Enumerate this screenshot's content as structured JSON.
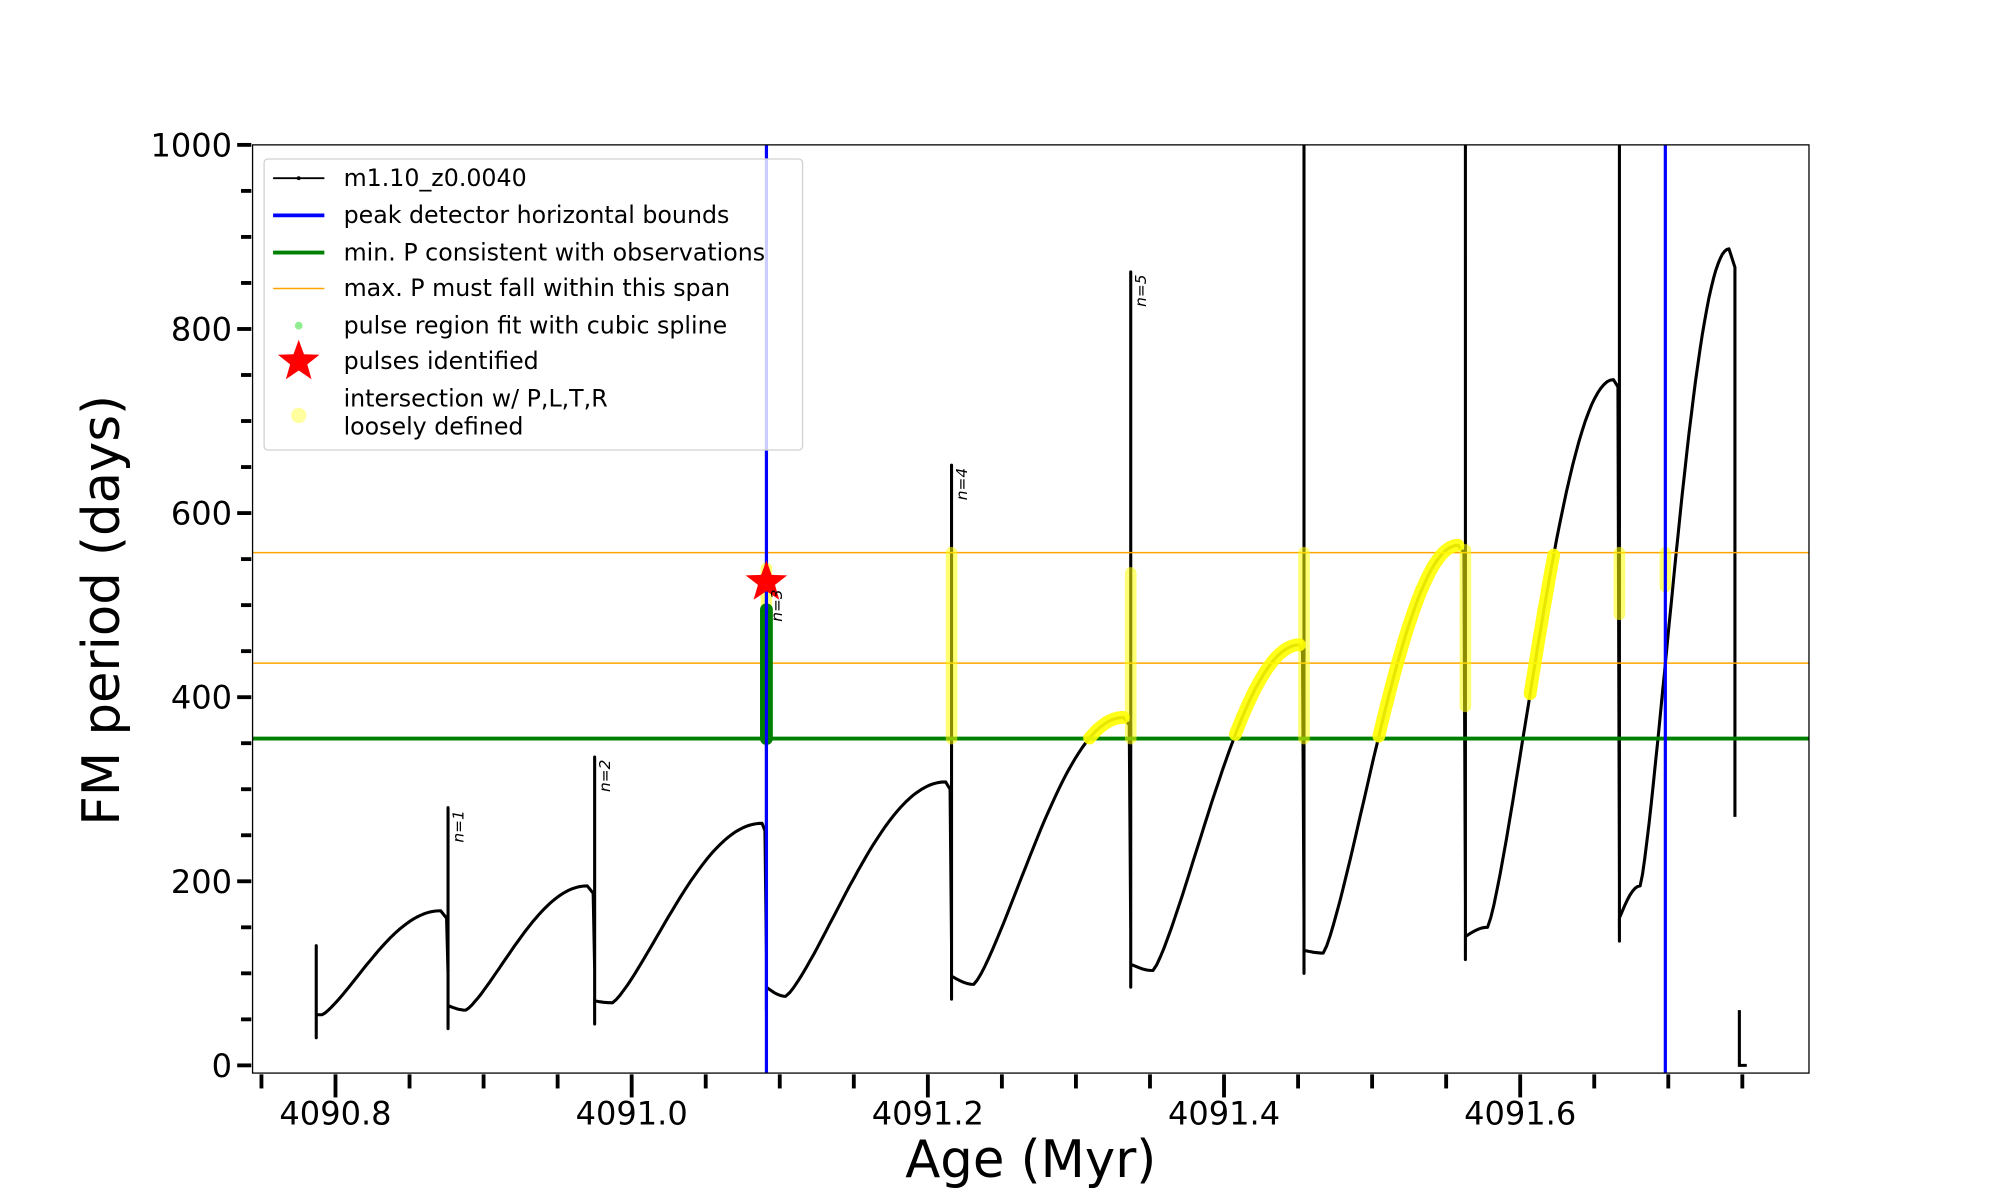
{
  "chart_data": {
    "type": "line",
    "title": "",
    "xlabel": "Age (Myr)",
    "ylabel": "FM period (days)",
    "xlim": [
      4090.744,
      4091.795
    ],
    "ylim": [
      0,
      1000
    ],
    "xticks": [
      "4090.8",
      "4091.0",
      "4091.2",
      "4091.4",
      "4091.6"
    ],
    "xtick_values": [
      4090.8,
      4091.0,
      4091.2,
      4091.4,
      4091.6
    ],
    "yticks": [
      "0",
      "200",
      "400",
      "600",
      "800",
      "1000"
    ],
    "ytick_values": [
      0,
      200,
      400,
      600,
      800,
      1000
    ],
    "grid": false,
    "legend_placement": "upper-left",
    "legend": [
      {
        "label": "m1.10_z0.0040",
        "kind": "line-marker",
        "color": "#000000"
      },
      {
        "label": "peak detector horizontal bounds",
        "kind": "line",
        "color": "#0000ff"
      },
      {
        "label": "min. P consistent with observations",
        "kind": "line",
        "color": "#008000"
      },
      {
        "label": "max. P must fall within this span",
        "kind": "thin-line",
        "color": "#ffa500"
      },
      {
        "label": "pulse region fit with cubic spline",
        "kind": "dot",
        "color": "#90ee90"
      },
      {
        "label": "pulses identified",
        "kind": "star",
        "color": "#ff0000"
      },
      {
        "label": "intersection w/ P,L,T,R",
        "label2": "loosely defined",
        "kind": "dot",
        "color": "#ffffa0"
      }
    ],
    "series_name": "m1.10_z0.0040",
    "spikes": [
      {
        "age": 4090.787,
        "top": 130,
        "bottom": 30,
        "label": ""
      },
      {
        "age": 4090.876,
        "top": 280,
        "bottom": 40,
        "label": "n=1"
      },
      {
        "age": 4090.975,
        "top": 335,
        "bottom": 45,
        "label": "n=2"
      },
      {
        "age": 4091.091,
        "top": 520,
        "bottom": 60,
        "label": "n=3"
      },
      {
        "age": 4091.216,
        "top": 652,
        "bottom": 72,
        "label": "n=4"
      },
      {
        "age": 4091.337,
        "top": 862,
        "bottom": 85,
        "label": "n=5"
      },
      {
        "age": 4091.454,
        "top": 1000,
        "bottom": 100,
        "label": ""
      },
      {
        "age": 4091.563,
        "top": 1000,
        "bottom": 115,
        "label": ""
      },
      {
        "age": 4091.667,
        "top": 1000,
        "bottom": 135,
        "label": ""
      }
    ],
    "cycles": [
      {
        "min_age": 4090.791,
        "min_p": 55,
        "peak_age": 4090.871,
        "peak_p": 168
      },
      {
        "min_age": 4090.888,
        "min_p": 60,
        "peak_age": 4090.97,
        "peak_p": 195
      },
      {
        "min_age": 4090.987,
        "min_p": 68,
        "peak_age": 4091.088,
        "peak_p": 263
      },
      {
        "min_age": 4091.104,
        "min_p": 75,
        "peak_age": 4091.212,
        "peak_p": 308
      },
      {
        "min_age": 4091.231,
        "min_p": 88,
        "peak_age": 4091.332,
        "peak_p": 378
      },
      {
        "min_age": 4091.352,
        "min_p": 103,
        "peak_age": 4091.451,
        "peak_p": 457
      },
      {
        "min_age": 4091.467,
        "min_p": 122,
        "peak_age": 4091.558,
        "peak_p": 565
      },
      {
        "min_age": 4091.578,
        "min_p": 150,
        "peak_age": 4091.663,
        "peak_p": 745
      },
      {
        "min_age": 4091.681,
        "min_p": 195,
        "peak_age": 4091.741,
        "peak_p": 887
      }
    ],
    "final_drop": {
      "age": 4091.745,
      "from": 887,
      "to": 270,
      "tail_start": 4091.748,
      "tail_end": 4091.753,
      "tail_p": 0
    },
    "blue_bounds": [
      4091.091,
      4091.698
    ],
    "green_min_p": 355,
    "orange_span": [
      437,
      557
    ],
    "yellow_rises": [
      {
        "cycle": 4,
        "p_low": 355,
        "p_high": 378
      },
      {
        "cycle": 5,
        "p_low": 355,
        "p_high": 457
      },
      {
        "cycle": 6,
        "p_low": 355,
        "p_high": 565
      },
      {
        "cycle": 7,
        "p_low": 397,
        "p_high": 557
      }
    ],
    "yellow_spikes": [
      {
        "age": 4091.091,
        "p_low": 495,
        "p_high": 540
      },
      {
        "age": 4091.216,
        "p_low": 355,
        "p_high": 557
      },
      {
        "age": 4091.337,
        "p_low": 355,
        "p_high": 535
      },
      {
        "age": 4091.454,
        "p_low": 355,
        "p_high": 557
      },
      {
        "age": 4091.563,
        "p_low": 390,
        "p_high": 560
      },
      {
        "age": 4091.667,
        "p_low": 490,
        "p_high": 557
      },
      {
        "age": 4091.698,
        "p_low": 520,
        "p_high": 557
      }
    ],
    "spline_region": {
      "age": 4091.091,
      "p_low": 355,
      "p_high": 495
    },
    "pulse_identified": {
      "age": 4091.091,
      "p": 525
    },
    "colors": {
      "curve": "#000000",
      "blue": "#0000ff",
      "green": "#008000",
      "orange": "#ffa500",
      "yellow": "#ffff00",
      "red": "#ff0000"
    }
  }
}
